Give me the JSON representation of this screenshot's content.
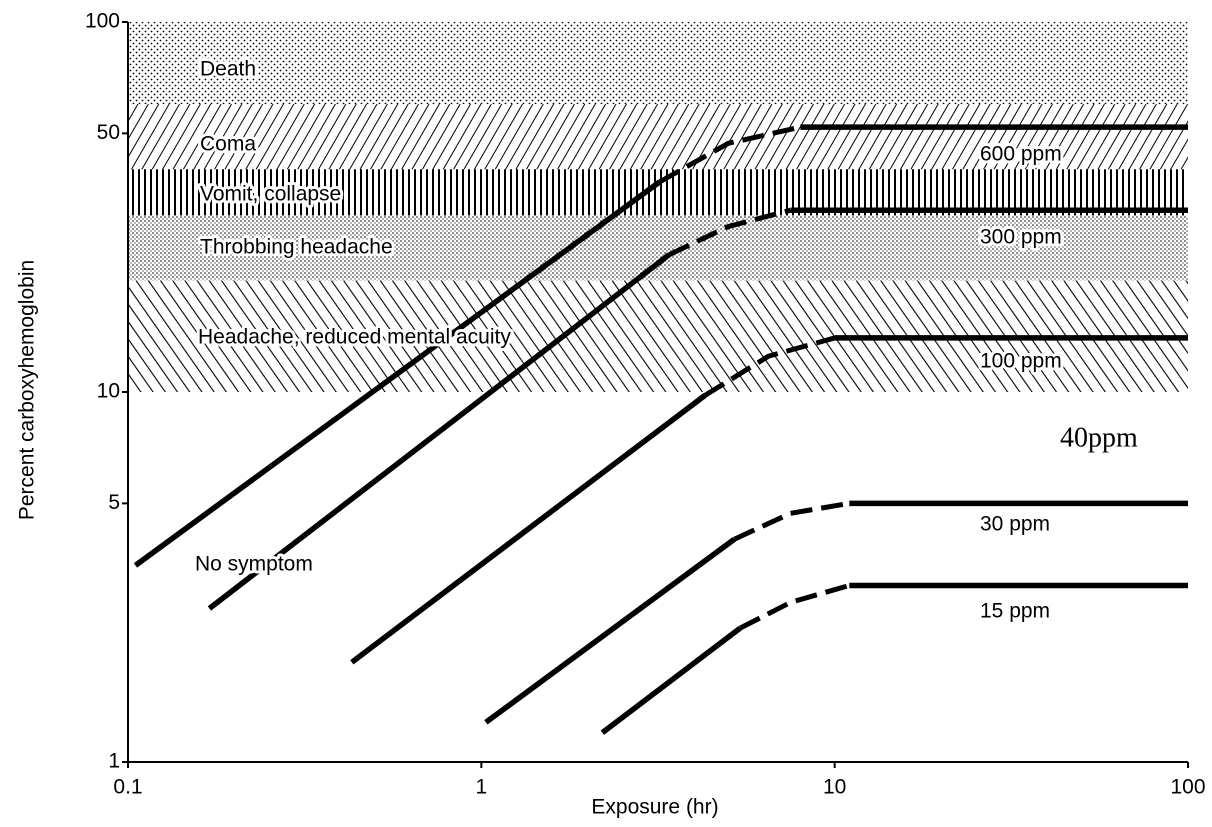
{
  "chart_data": {
    "type": "line",
    "xlabel": "Exposure (hr)",
    "ylabel": "Percent carboxyhemoglobin",
    "xscale": "log",
    "yscale": "log",
    "xlim": [
      0.1,
      100
    ],
    "ylim": [
      1,
      100
    ],
    "xticks": [
      0.1,
      1,
      10,
      100
    ],
    "yticks": [
      1,
      5,
      10,
      50,
      100
    ],
    "color": "#000000",
    "bands": [
      {
        "label": "Death",
        "range": [
          60,
          100
        ],
        "pattern": "dots"
      },
      {
        "label": "Coma",
        "range": [
          40,
          60
        ],
        "pattern": "forward-hatch"
      },
      {
        "label": "Vomit, collapse",
        "range": [
          30,
          40
        ],
        "pattern": "vertical-hatch"
      },
      {
        "label": "Throbbing headache",
        "range": [
          20,
          30
        ],
        "pattern": "dense-dots"
      },
      {
        "label": "Headache, reduced mental acuity",
        "range": [
          10,
          20
        ],
        "pattern": "back-hatch"
      },
      {
        "label": "No symptom",
        "range": [
          1,
          10
        ],
        "pattern": "none"
      }
    ],
    "series": [
      {
        "name": "600 ppm",
        "segments": [
          {
            "style": "solid",
            "x": [
              0.105,
              3.2
            ],
            "values": [
              3.4,
              37
            ]
          },
          {
            "style": "dashed",
            "x": [
              3.2,
              5,
              8
            ],
            "values": [
              37,
              47,
              52
            ]
          },
          {
            "style": "solid",
            "x": [
              8,
              100
            ],
            "values": [
              52,
              52
            ]
          }
        ]
      },
      {
        "name": "300 ppm",
        "segments": [
          {
            "style": "solid",
            "x": [
              0.17,
              3.4
            ],
            "values": [
              2.6,
              23.5
            ]
          },
          {
            "style": "dashed",
            "x": [
              3.4,
              5,
              7.5
            ],
            "values": [
              23.5,
              28,
              31
            ]
          },
          {
            "style": "solid",
            "x": [
              7.5,
              100
            ],
            "values": [
              31,
              31
            ]
          }
        ]
      },
      {
        "name": "100 ppm",
        "segments": [
          {
            "style": "solid",
            "x": [
              0.43,
              4.3
            ],
            "values": [
              1.86,
              9.8
            ]
          },
          {
            "style": "dashed",
            "x": [
              4.3,
              6.5,
              10
            ],
            "values": [
              9.8,
              12.5,
              14
            ]
          },
          {
            "style": "solid",
            "x": [
              10,
              100
            ],
            "values": [
              14,
              14
            ]
          }
        ]
      },
      {
        "name": "30 ppm",
        "segments": [
          {
            "style": "solid",
            "x": [
              1.03,
              5.2
            ],
            "values": [
              1.28,
              4
            ]
          },
          {
            "style": "dashed",
            "x": [
              5.2,
              7.5,
              11
            ],
            "values": [
              4,
              4.7,
              5
            ]
          },
          {
            "style": "solid",
            "x": [
              11,
              100
            ],
            "values": [
              5,
              5
            ]
          }
        ]
      },
      {
        "name": "15 ppm",
        "segments": [
          {
            "style": "solid",
            "x": [
              2.2,
              5.4
            ],
            "values": [
              1.2,
              2.3
            ]
          },
          {
            "style": "dashed",
            "x": [
              5.4,
              7.5,
              11
            ],
            "values": [
              2.3,
              2.7,
              3
            ]
          },
          {
            "style": "solid",
            "x": [
              11,
              100
            ],
            "values": [
              3,
              3
            ]
          }
        ]
      }
    ],
    "annotations": [
      "40ppm"
    ]
  }
}
